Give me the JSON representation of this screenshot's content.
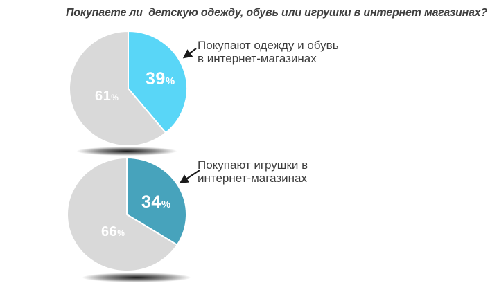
{
  "title": "Покупаете ли  детскую одежду, обувь или игрушки в интернет магазинах?",
  "percent_sign": "%",
  "colors": {
    "highlight_clothes": "#59d6f7",
    "highlight_toys": "#47a3bc",
    "remainder_gray": "#d9d9d9",
    "percent_text": "#ffffff",
    "title_text": "#3f3f3f",
    "callout_text": "#3d3d3d",
    "arrow": "#1b1b1b"
  },
  "chart_data": [
    {
      "type": "pie",
      "title": "Покупаете ли  детскую одежду, обувь или игрушки в интернет магазинах?",
      "legend_position": "none",
      "callout": {
        "lines": [
          "Покупают одежду и обувь",
          "в интернет-магазинах"
        ]
      },
      "slices": [
        {
          "label": "Покупают одежду и обувь в интернет-магазинах",
          "value": 39,
          "value_label": "39%",
          "color": "#59d6f7"
        },
        {
          "label": "",
          "value": 61,
          "value_label": "61%",
          "color": "#d9d9d9"
        }
      ]
    },
    {
      "type": "pie",
      "legend_position": "none",
      "callout": {
        "lines": [
          "Покупают игрушки в",
          "интернет-магазинах"
        ]
      },
      "slices": [
        {
          "label": "Покупают игрушки в интернет-магазинах",
          "value": 34,
          "value_label": "34%",
          "color": "#47a3bc"
        },
        {
          "label": "",
          "value": 66,
          "value_label": "66%",
          "color": "#d9d9d9"
        }
      ]
    }
  ]
}
